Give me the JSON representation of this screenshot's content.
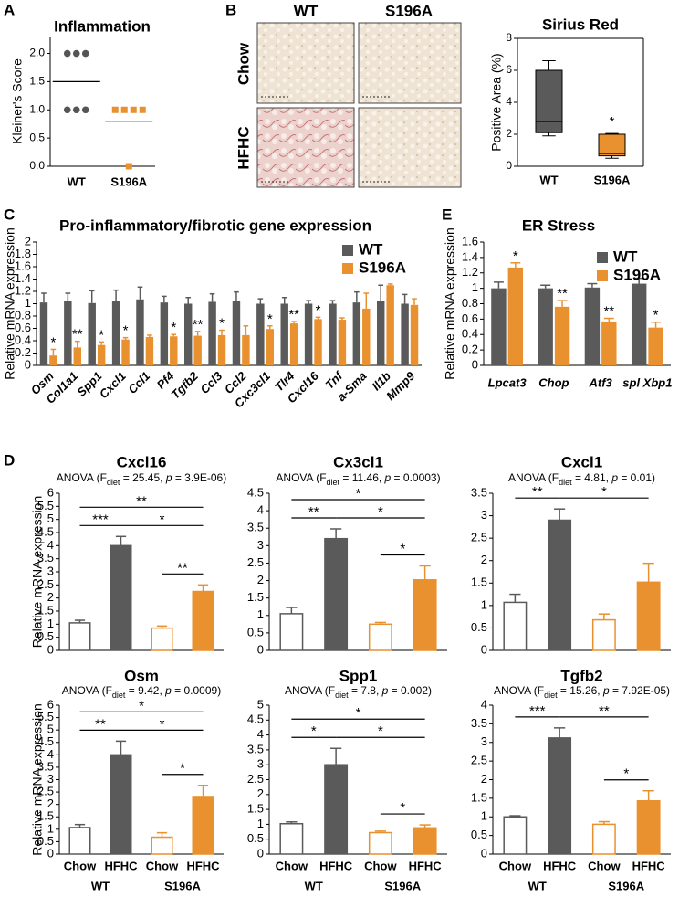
{
  "chart_data": [
    {
      "type": "dot",
      "panel": "A",
      "title": "Inflammation",
      "ylabel": "Kleiner's Score",
      "categories": [
        "WT",
        "S196A"
      ],
      "points": [
        [
          2,
          2,
          2,
          1,
          1,
          1
        ],
        [
          1,
          1,
          1,
          1,
          0
        ]
      ],
      "means": [
        1.5,
        0.8
      ],
      "colors": [
        "#555555",
        "#e8912e"
      ],
      "markers": [
        "circle",
        "square"
      ],
      "ylim": [
        0,
        2.3
      ],
      "yticks": [
        {
          "value": 0,
          "label": "0.0"
        },
        {
          "value": 0.5,
          "label": "0.5"
        },
        {
          "value": 1,
          "label": "1.0"
        },
        {
          "value": 1.5,
          "label": "1.5"
        },
        {
          "value": 2,
          "label": "2.0"
        }
      ]
    },
    {
      "type": "images",
      "panel": "B",
      "columns": [
        "WT",
        "S196A"
      ],
      "rows": [
        "Chow",
        "HFHC"
      ]
    },
    {
      "type": "box",
      "title": "Sirius Red",
      "ylabel": "Positive Area (%)",
      "categories": [
        "WT",
        "S196A"
      ],
      "boxes": [
        {
          "min": 1.9,
          "q1": 2.1,
          "median": 2.8,
          "q3": 6.0,
          "max": 6.6
        },
        {
          "min": 0.5,
          "q1": 0.65,
          "median": 0.8,
          "q3": 2.0,
          "max": 2.05
        }
      ],
      "colors": [
        "#5a5a5a",
        "#e8912e"
      ],
      "annotations": [
        null,
        "*"
      ],
      "ylim": [
        0,
        8
      ],
      "yticks": [
        0,
        2,
        4,
        6,
        8
      ]
    },
    {
      "type": "grouped-bar",
      "panel": "C",
      "title": "Pro-inflammatory/fibrotic gene expression",
      "ylabel": "Relative mRNA expression",
      "categories": [
        "Osm",
        "Col1a1",
        "Spp1",
        "Cxcl1",
        "Ccl1",
        "Pf4",
        "Tgfb2",
        "Ccl3",
        "Ccl2",
        "Cxc3cl1",
        "Tlr4",
        "Cxcl16",
        "Tnf",
        "a-Sma",
        "Il1b",
        "Mmp9"
      ],
      "series": [
        {
          "name": "WT",
          "color": "#5a5a5a",
          "values": [
            1.02,
            1.05,
            1.01,
            1.04,
            1.07,
            1.02,
            1.0,
            1.03,
            1.04,
            1.0,
            1.0,
            1.0,
            1.0,
            1.02,
            1.05,
            1.0
          ],
          "errors": [
            0.15,
            0.12,
            0.2,
            0.18,
            0.2,
            0.1,
            0.1,
            0.13,
            0.15,
            0.08,
            0.1,
            0.05,
            0.05,
            0.17,
            0.25,
            0.15
          ]
        },
        {
          "name": "S196A",
          "color": "#e8912e",
          "values": [
            0.16,
            0.29,
            0.33,
            0.42,
            0.46,
            0.47,
            0.48,
            0.49,
            0.49,
            0.59,
            0.68,
            0.75,
            0.74,
            0.92,
            1.3,
            0.98
          ],
          "errors": [
            0.1,
            0.1,
            0.05,
            0.03,
            0.03,
            0.03,
            0.07,
            0.08,
            0.15,
            0.05,
            0.03,
            0.03,
            0.03,
            0.25,
            0.02,
            0.1
          ]
        }
      ],
      "stars": [
        "*",
        "**",
        "*",
        "*",
        null,
        "*",
        "**",
        "*",
        null,
        "*",
        "**",
        "*",
        null,
        null,
        null,
        null
      ],
      "ylim": [
        0,
        2
      ],
      "yticks": [
        0,
        0.2,
        0.4,
        0.6,
        0.8,
        1,
        1.2,
        1.4,
        1.6,
        1.8,
        2
      ],
      "legend": "upper right"
    },
    {
      "type": "grouped-bar",
      "panel": "E",
      "title": "ER Stress",
      "ylabel": "Relative mRNA expression",
      "categories": [
        "Lpcat3",
        "Chop",
        "Atf3",
        "spl Xbp1"
      ],
      "series": [
        {
          "name": "WT",
          "color": "#5a5a5a",
          "values": [
            1.0,
            1.0,
            1.01,
            1.06
          ],
          "errors": [
            0.08,
            0.04,
            0.05,
            0.07
          ]
        },
        {
          "name": "S196A",
          "color": "#e8912e",
          "values": [
            1.27,
            0.76,
            0.57,
            0.49
          ],
          "errors": [
            0.06,
            0.08,
            0.04,
            0.07
          ]
        }
      ],
      "stars": [
        "*",
        "**",
        "**",
        "*"
      ],
      "ylim": [
        0,
        1.6
      ],
      "yticks": [
        0,
        0.2,
        0.4,
        0.6,
        0.8,
        1,
        1.2,
        1.4,
        1.6
      ],
      "legend": "upper right"
    },
    {
      "type": "bar4",
      "panel": "D",
      "title": "Cxcl16",
      "subtitle": [
        "ANOVA (F",
        "diet",
        " = 25.45, ",
        "p",
        " = 3.9E-06)"
      ],
      "ylabel": "Relative mRNA expression",
      "values": [
        1.05,
        4.0,
        0.85,
        2.25
      ],
      "errors": [
        0.1,
        0.35,
        0.08,
        0.25
      ],
      "colors": [
        "#5a5a5a",
        "#5a5a5a",
        "#e8912e",
        "#e8912e"
      ],
      "filled": [
        false,
        true,
        false,
        true
      ],
      "comparisons": [
        {
          "from": 0,
          "to": 1,
          "label": "***"
        },
        {
          "from": 0,
          "to": 3,
          "label": "**"
        },
        {
          "from": 1,
          "to": 3,
          "label": "*"
        },
        {
          "from": 2,
          "to": 3,
          "label": "**"
        }
      ],
      "ylim": [
        0,
        6
      ],
      "yticks": [
        0,
        0.5,
        1,
        1.5,
        2,
        2.5,
        3,
        3.5,
        4,
        4.5,
        5,
        5.5,
        6
      ]
    },
    {
      "type": "bar4",
      "title": "Cx3cl1",
      "subtitle": [
        "ANOVA (F",
        "diet",
        " = 11.46, ",
        "p",
        " = 0.0003)"
      ],
      "values": [
        1.05,
        3.2,
        0.75,
        2.02
      ],
      "errors": [
        0.18,
        0.28,
        0.05,
        0.4
      ],
      "colors": [
        "#5a5a5a",
        "#5a5a5a",
        "#e8912e",
        "#e8912e"
      ],
      "filled": [
        false,
        true,
        false,
        true
      ],
      "comparisons": [
        {
          "from": 0,
          "to": 1,
          "label": "**"
        },
        {
          "from": 0,
          "to": 3,
          "label": "*"
        },
        {
          "from": 1,
          "to": 3,
          "label": "*"
        },
        {
          "from": 2,
          "to": 3,
          "label": "*"
        }
      ],
      "ylim": [
        0,
        4.5
      ],
      "yticks": [
        0,
        0.5,
        1,
        1.5,
        2,
        2.5,
        3,
        3.5,
        4,
        4.5
      ]
    },
    {
      "type": "bar4",
      "title": "Cxcl1",
      "subtitle": [
        "ANOVA (F",
        "diet",
        " = 4.81, ",
        "p",
        " = 0.01)"
      ],
      "values": [
        1.07,
        2.9,
        0.68,
        1.52
      ],
      "errors": [
        0.18,
        0.25,
        0.13,
        0.42
      ],
      "colors": [
        "#5a5a5a",
        "#5a5a5a",
        "#e8912e",
        "#e8912e"
      ],
      "filled": [
        false,
        true,
        false,
        true
      ],
      "comparisons": [
        {
          "from": 0,
          "to": 1,
          "label": "**"
        },
        {
          "from": 1,
          "to": 3,
          "label": "*"
        }
      ],
      "ylim": [
        0,
        3.5
      ],
      "yticks": [
        0,
        0.5,
        1,
        1.5,
        2,
        2.5,
        3,
        3.5
      ]
    },
    {
      "type": "bar4",
      "title": "Osm",
      "subtitle": [
        "ANOVA (F",
        "diet",
        " = 9.42, ",
        "p",
        " = 0.0009)"
      ],
      "ylabel": "Relative mRNA expression",
      "values": [
        1.07,
        4.0,
        0.68,
        2.32
      ],
      "errors": [
        0.12,
        0.55,
        0.18,
        0.45
      ],
      "colors": [
        "#5a5a5a",
        "#5a5a5a",
        "#e8912e",
        "#e8912e"
      ],
      "filled": [
        false,
        true,
        false,
        true
      ],
      "comparisons": [
        {
          "from": 0,
          "to": 1,
          "label": "**"
        },
        {
          "from": 0,
          "to": 3,
          "label": "*"
        },
        {
          "from": 1,
          "to": 3,
          "label": "*"
        },
        {
          "from": 2,
          "to": 3,
          "label": "*"
        }
      ],
      "categories": [
        "Chow",
        "HFHC",
        "Chow",
        "HFHC"
      ],
      "groups": [
        "WT",
        "S196A"
      ],
      "ylim": [
        0,
        6
      ],
      "yticks": [
        0,
        0.5,
        1,
        1.5,
        2,
        2.5,
        3,
        3.5,
        4,
        4.5,
        5,
        5.5,
        6
      ]
    },
    {
      "type": "bar4",
      "title": "Spp1",
      "subtitle": [
        "ANOVA (F",
        "diet",
        " = 7.8, ",
        "p",
        " = 0.002)"
      ],
      "values": [
        1.02,
        3.0,
        0.72,
        0.88
      ],
      "errors": [
        0.06,
        0.55,
        0.05,
        0.1
      ],
      "colors": [
        "#5a5a5a",
        "#5a5a5a",
        "#e8912e",
        "#e8912e"
      ],
      "filled": [
        false,
        true,
        false,
        true
      ],
      "comparisons": [
        {
          "from": 0,
          "to": 1,
          "label": "*"
        },
        {
          "from": 0,
          "to": 3,
          "label": "*"
        },
        {
          "from": 1,
          "to": 3,
          "label": "*"
        },
        {
          "from": 2,
          "to": 3,
          "label": "*"
        }
      ],
      "categories": [
        "Chow",
        "HFHC",
        "Chow",
        "HFHC"
      ],
      "groups": [
        "WT",
        "S196A"
      ],
      "ylim": [
        0,
        5
      ],
      "yticks": [
        0,
        0.5,
        1,
        1.5,
        2,
        2.5,
        3,
        3.5,
        4,
        4.5,
        5
      ]
    },
    {
      "type": "bar4",
      "title": "Tgfb2",
      "subtitle": [
        "ANOVA (F",
        "diet",
        " = 15.26, ",
        "p",
        " = 7.92E-05)"
      ],
      "values": [
        1.0,
        3.12,
        0.8,
        1.43
      ],
      "errors": [
        0.03,
        0.27,
        0.07,
        0.27
      ],
      "colors": [
        "#5a5a5a",
        "#5a5a5a",
        "#e8912e",
        "#e8912e"
      ],
      "filled": [
        false,
        true,
        false,
        true
      ],
      "comparisons": [
        {
          "from": 0,
          "to": 1,
          "label": "***"
        },
        {
          "from": 1,
          "to": 3,
          "label": "**"
        },
        {
          "from": 2,
          "to": 3,
          "label": "*"
        }
      ],
      "categories": [
        "Chow",
        "HFHC",
        "Chow",
        "HFHC"
      ],
      "groups": [
        "WT",
        "S196A"
      ],
      "ylim": [
        0,
        4
      ],
      "yticks": [
        0,
        0.5,
        1,
        1.5,
        2,
        2.5,
        3,
        3.5,
        4
      ]
    }
  ]
}
